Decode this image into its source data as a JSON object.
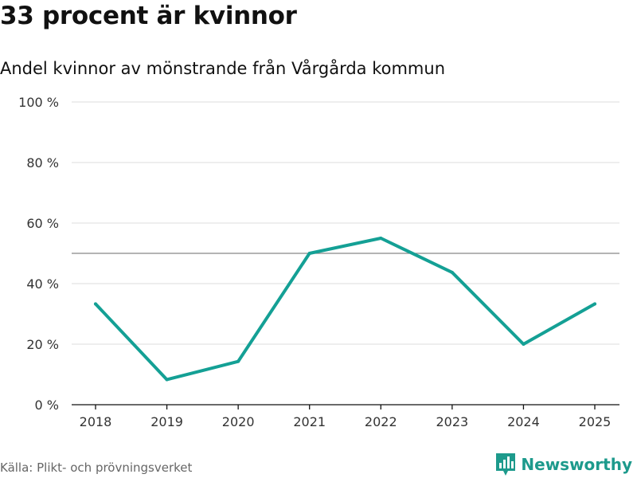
{
  "title": "33 procent är kvinnor",
  "subtitle": "Andel kvinnor av mönstrande från Vårgårda kommun",
  "source": "Källa: Plikt- och prövningsverket",
  "brand": "Newsworthy",
  "colors": {
    "line": "#14a095",
    "brand": "#1d9a8c",
    "grid": "#dddddd",
    "reference": "#888888"
  },
  "chart_data": {
    "type": "line",
    "title": "33 procent är kvinnor",
    "subtitle": "Andel kvinnor av mönstrande från Vårgårda kommun",
    "xlabel": "",
    "ylabel": "",
    "categories": [
      "2018",
      "2019",
      "2020",
      "2021",
      "2022",
      "2023",
      "2024",
      "2025"
    ],
    "series": [
      {
        "name": "Andel kvinnor",
        "values": [
          33.3,
          8.3,
          14.3,
          50,
          55,
          43.7,
          20,
          33.3
        ]
      }
    ],
    "ylim": [
      0,
      100
    ],
    "yticks": [
      0,
      20,
      40,
      60,
      80,
      100
    ],
    "ytick_labels": [
      "0 %",
      "20 %",
      "40 %",
      "60 %",
      "80 %",
      "100 %"
    ],
    "reference_line": 50,
    "grid": true,
    "legend": "none"
  }
}
